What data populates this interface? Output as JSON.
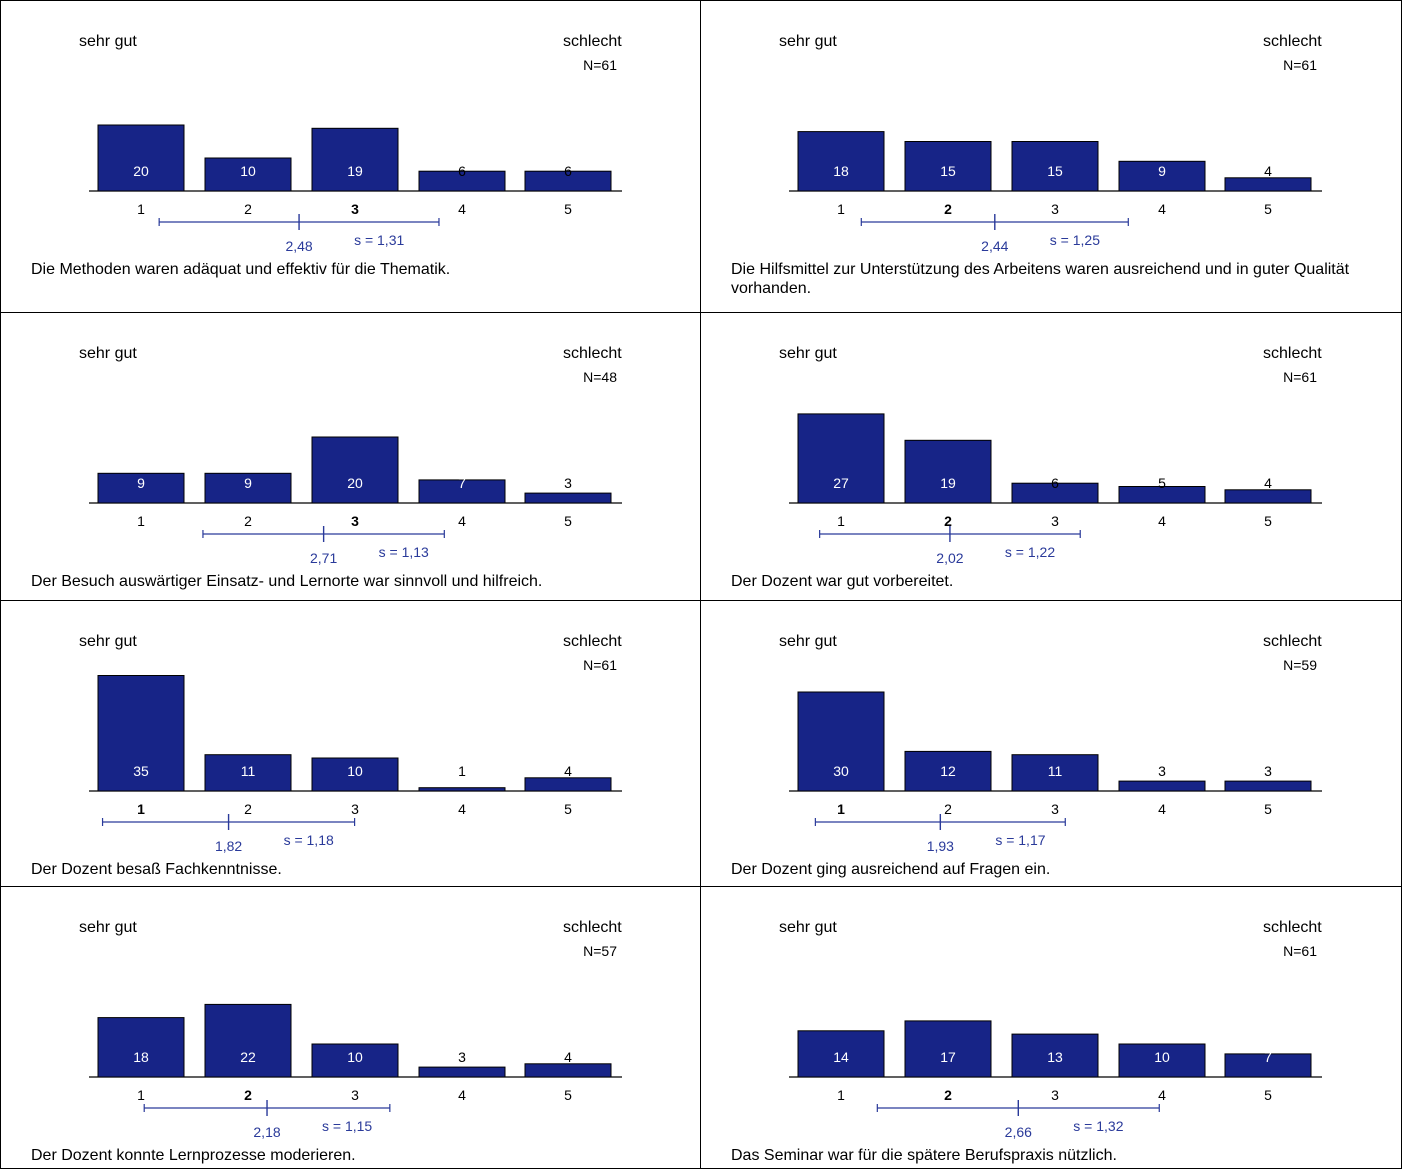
{
  "labels": {
    "left": "sehr gut",
    "right": "schlecht"
  },
  "colors": {
    "bar": "#172487",
    "bar_border": "#000000",
    "stat": "#2a3a9a",
    "axis": "#000000"
  },
  "chart_data": [
    {
      "type": "bar",
      "categories": [
        "1",
        "2",
        "3",
        "4",
        "5"
      ],
      "values": [
        20,
        10,
        19,
        6,
        6
      ],
      "n": "N=61",
      "mean_label": "2,48",
      "mean": 2.48,
      "sd_label": "s = 1,31",
      "sd": 1.31,
      "median_index": 2,
      "question": "Die Methoden waren adäquat und effektiv für die Thematik."
    },
    {
      "type": "bar",
      "categories": [
        "1",
        "2",
        "3",
        "4",
        "5"
      ],
      "values": [
        18,
        15,
        15,
        9,
        4
      ],
      "n": "N=61",
      "mean_label": "2,44",
      "mean": 2.44,
      "sd_label": "s = 1,25",
      "sd": 1.25,
      "median_index": 1,
      "question": "Die Hilfsmittel zur Unterstützung des Arbeitens waren ausreichend und in guter Qualität vorhanden."
    },
    {
      "type": "bar",
      "categories": [
        "1",
        "2",
        "3",
        "4",
        "5"
      ],
      "values": [
        9,
        9,
        20,
        7,
        3
      ],
      "n": "N=48",
      "mean_label": "2,71",
      "mean": 2.71,
      "sd_label": "s = 1,13",
      "sd": 1.13,
      "median_index": 2,
      "question": "Der Besuch auswärtiger Einsatz- und Lernorte war sinnvoll und hilfreich."
    },
    {
      "type": "bar",
      "categories": [
        "1",
        "2",
        "3",
        "4",
        "5"
      ],
      "values": [
        27,
        19,
        6,
        5,
        4
      ],
      "n": "N=61",
      "mean_label": "2,02",
      "mean": 2.02,
      "sd_label": "s = 1,22",
      "sd": 1.22,
      "median_index": 1,
      "question": "Der Dozent war gut vorbereitet."
    },
    {
      "type": "bar",
      "categories": [
        "1",
        "2",
        "3",
        "4",
        "5"
      ],
      "values": [
        35,
        11,
        10,
        1,
        4
      ],
      "n": "N=61",
      "mean_label": "1,82",
      "mean": 1.82,
      "sd_label": "s = 1,18",
      "sd": 1.18,
      "median_index": 0,
      "question": "Der Dozent besaß Fachkenntnisse."
    },
    {
      "type": "bar",
      "categories": [
        "1",
        "2",
        "3",
        "4",
        "5"
      ],
      "values": [
        30,
        12,
        11,
        3,
        3
      ],
      "n": "N=59",
      "mean_label": "1,93",
      "mean": 1.93,
      "sd_label": "s = 1,17",
      "sd": 1.17,
      "median_index": 0,
      "question": "Der Dozent ging ausreichend auf Fragen ein."
    },
    {
      "type": "bar",
      "categories": [
        "1",
        "2",
        "3",
        "4",
        "5"
      ],
      "values": [
        18,
        22,
        10,
        3,
        4
      ],
      "n": "N=57",
      "mean_label": "2,18",
      "mean": 2.18,
      "sd_label": "s = 1,15",
      "sd": 1.15,
      "median_index": 1,
      "question": "Der Dozent konnte Lernprozesse moderieren."
    },
    {
      "type": "bar",
      "categories": [
        "1",
        "2",
        "3",
        "4",
        "5"
      ],
      "values": [
        14,
        17,
        13,
        10,
        7
      ],
      "n": "N=61",
      "mean_label": "2,66",
      "mean": 2.66,
      "sd_label": "s = 1,32",
      "sd": 1.32,
      "median_index": 1,
      "question": "Das Seminar war für die spätere Berufspraxis nützlich."
    }
  ]
}
